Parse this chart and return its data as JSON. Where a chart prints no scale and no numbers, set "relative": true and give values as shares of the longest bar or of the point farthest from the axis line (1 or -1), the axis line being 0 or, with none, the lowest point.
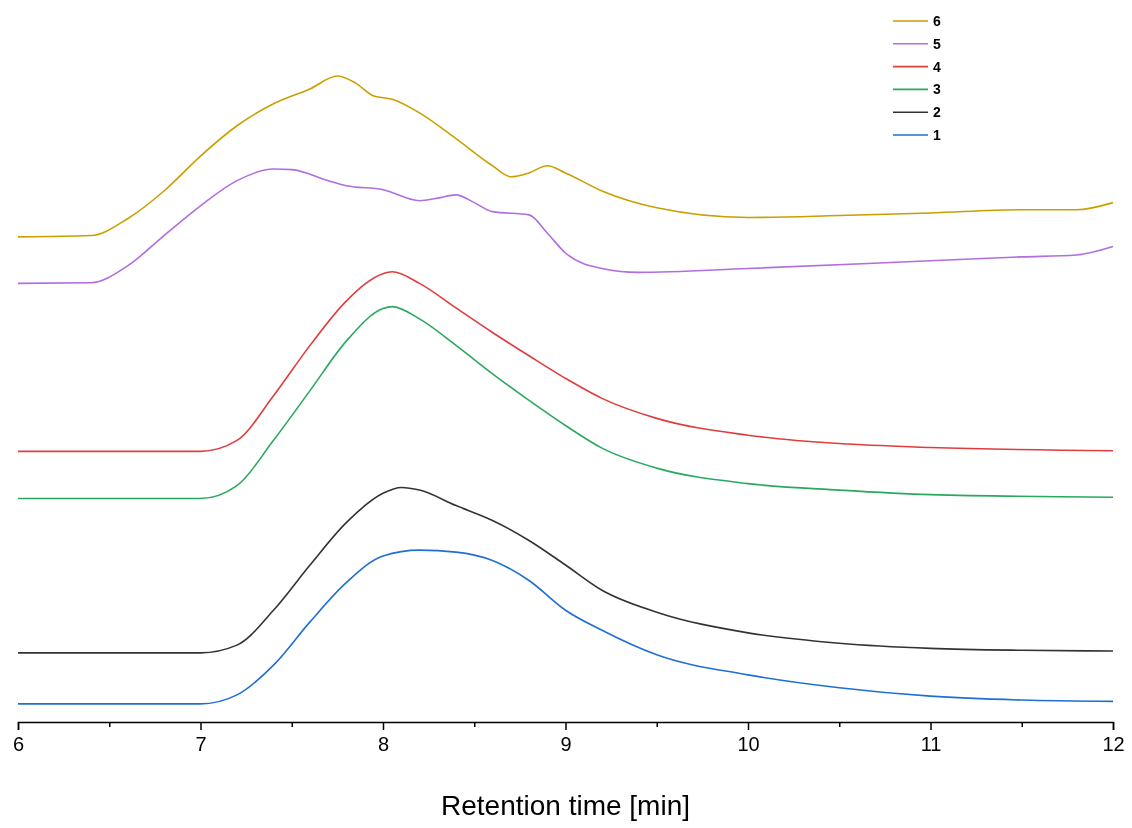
{
  "chart_data": {
    "type": "line",
    "xlabel": "Retention time [min]",
    "relative": true,
    "tick_labels": "x",
    "legend": "top right",
    "xlim": [
      6,
      12
    ],
    "xticks": [
      6,
      {
        "value": 6.5,
        "label": null
      },
      7,
      {
        "value": 7.5,
        "label": null
      },
      8,
      {
        "value": 8.5,
        "label": null
      },
      9,
      {
        "value": 9.5,
        "label": null
      },
      10,
      {
        "value": 10.5,
        "label": null
      },
      11,
      {
        "value": 11.5,
        "label": null
      },
      12
    ],
    "series": [
      {
        "name": "6",
        "color": "#c9a000",
        "x": [
          6,
          6.4,
          6.6,
          6.8,
          7,
          7.2,
          7.4,
          7.6,
          7.75,
          7.85,
          7.95,
          8.05,
          8.2,
          8.4,
          8.6,
          8.7,
          8.8,
          8.9,
          9,
          9.2,
          9.5,
          10,
          10.5,
          11,
          11.5,
          11.8,
          12
        ],
        "values": [
          0.751,
          0.753,
          0.779,
          0.822,
          0.876,
          0.923,
          0.957,
          0.98,
          1,
          0.989,
          0.969,
          0.964,
          0.943,
          0.903,
          0.861,
          0.844,
          0.85,
          0.861,
          0.85,
          0.822,
          0.796,
          0.781,
          0.784,
          0.788,
          0.793,
          0.793,
          0.804
        ]
      },
      {
        "name": "5",
        "color": "#b06ee0",
        "x": [
          6,
          6.4,
          6.6,
          6.8,
          7,
          7.2,
          7.4,
          7.5,
          7.7,
          7.8,
          8,
          8.2,
          8.3,
          8.4,
          8.5,
          8.6,
          8.8,
          8.9,
          9,
          9.2,
          9.4,
          10,
          11,
          11.5,
          11.8,
          12
        ],
        "values": [
          0.679,
          0.68,
          0.706,
          0.753,
          0.799,
          0.838,
          0.856,
          0.855,
          0.838,
          0.83,
          0.824,
          0.807,
          0.811,
          0.816,
          0.804,
          0.79,
          0.785,
          0.757,
          0.726,
          0.702,
          0.696,
          0.702,
          0.714,
          0.72,
          0.723,
          0.736
        ]
      },
      {
        "name": "4",
        "color": "#e03c3c",
        "x": [
          6,
          7,
          7.2,
          7.4,
          7.6,
          7.8,
          8,
          8.05,
          8.2,
          8.4,
          8.6,
          8.8,
          9,
          9.2,
          9.5,
          10,
          10.5,
          11,
          12
        ],
        "values": [
          0.419,
          0.419,
          0.436,
          0.505,
          0.583,
          0.652,
          0.694,
          0.697,
          0.679,
          0.641,
          0.603,
          0.567,
          0.532,
          0.501,
          0.47,
          0.444,
          0.431,
          0.425,
          0.42
        ]
      },
      {
        "name": "3",
        "color": "#2aa860",
        "x": [
          6,
          7,
          7.2,
          7.4,
          7.6,
          7.8,
          8,
          8.05,
          8.2,
          8.4,
          8.6,
          8.8,
          9,
          9.2,
          9.5,
          10,
          10.5,
          11,
          12
        ],
        "values": [
          0.346,
          0.346,
          0.366,
          0.436,
          0.513,
          0.59,
          0.64,
          0.643,
          0.624,
          0.583,
          0.539,
          0.498,
          0.459,
          0.424,
          0.393,
          0.369,
          0.359,
          0.352,
          0.348
        ]
      },
      {
        "name": "2",
        "color": "#333333",
        "x": [
          6,
          7,
          7.2,
          7.4,
          7.6,
          7.8,
          8,
          8.1,
          8.2,
          8.4,
          8.6,
          8.8,
          9,
          9.2,
          9.5,
          10,
          10.5,
          11,
          11.5,
          12
        ],
        "values": [
          0.107,
          0.107,
          0.119,
          0.173,
          0.243,
          0.309,
          0.354,
          0.363,
          0.359,
          0.335,
          0.312,
          0.281,
          0.243,
          0.204,
          0.17,
          0.138,
          0.122,
          0.114,
          0.111,
          0.11
        ]
      },
      {
        "name": "1",
        "color": "#1f6fd4",
        "x": [
          6,
          7,
          7.2,
          7.4,
          7.6,
          7.8,
          8,
          8.2,
          8.4,
          8.6,
          8.8,
          9,
          9.2,
          9.5,
          10,
          10.5,
          11,
          11.5,
          12
        ],
        "values": [
          0.028,
          0.028,
          0.042,
          0.088,
          0.155,
          0.216,
          0.257,
          0.266,
          0.263,
          0.25,
          0.219,
          0.173,
          0.142,
          0.104,
          0.073,
          0.053,
          0.04,
          0.034,
          0.032
        ]
      }
    ]
  }
}
